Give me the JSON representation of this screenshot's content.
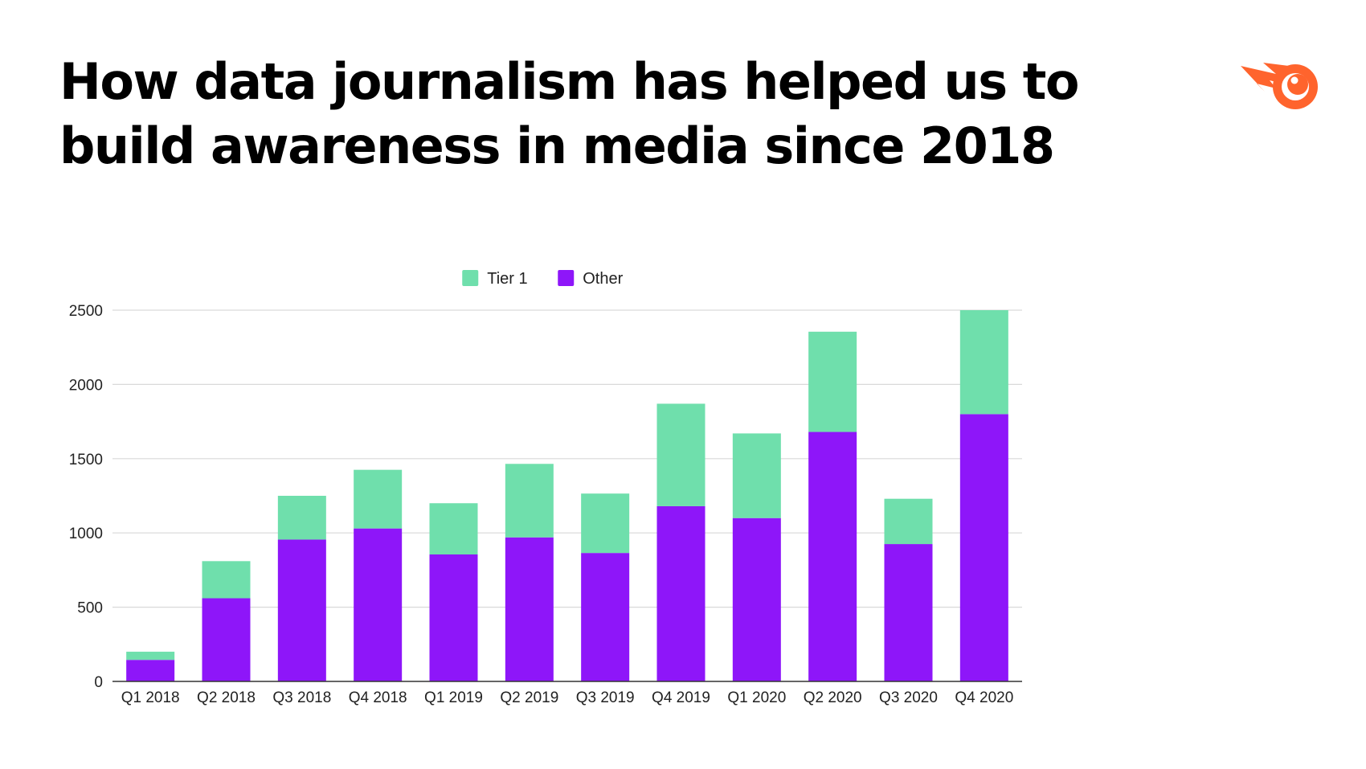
{
  "title_lines": [
    "How data journalism has helped us to",
    "build awareness in media since 2018"
  ],
  "logo": {
    "name": "semrush-comet-logo",
    "color": "#ff642d"
  },
  "chart_data": {
    "type": "bar",
    "stacked": true,
    "categories": [
      "Q1 2018",
      "Q2 2018",
      "Q3 2018",
      "Q4 2018",
      "Q1 2019",
      "Q2 2019",
      "Q3 2019",
      "Q4 2019",
      "Q1 2020",
      "Q2 2020",
      "Q3 2020",
      "Q4 2020"
    ],
    "series": [
      {
        "name": "Other",
        "color": "#8e16f9",
        "values": [
          145,
          560,
          955,
          1030,
          855,
          970,
          865,
          1180,
          1100,
          1680,
          925,
          1800
        ]
      },
      {
        "name": "Tier 1",
        "color": "#6fdfac",
        "values": [
          55,
          250,
          295,
          395,
          345,
          495,
          400,
          690,
          570,
          675,
          305,
          700
        ]
      }
    ],
    "legend_order": [
      "Tier 1",
      "Other"
    ],
    "legend_position": "top-center",
    "y_ticks": [
      "0",
      "500",
      "1000",
      "1500",
      "2000",
      "2500"
    ],
    "ylim": [
      0,
      2500
    ],
    "grid": true,
    "title": "",
    "xlabel": "",
    "ylabel": ""
  }
}
